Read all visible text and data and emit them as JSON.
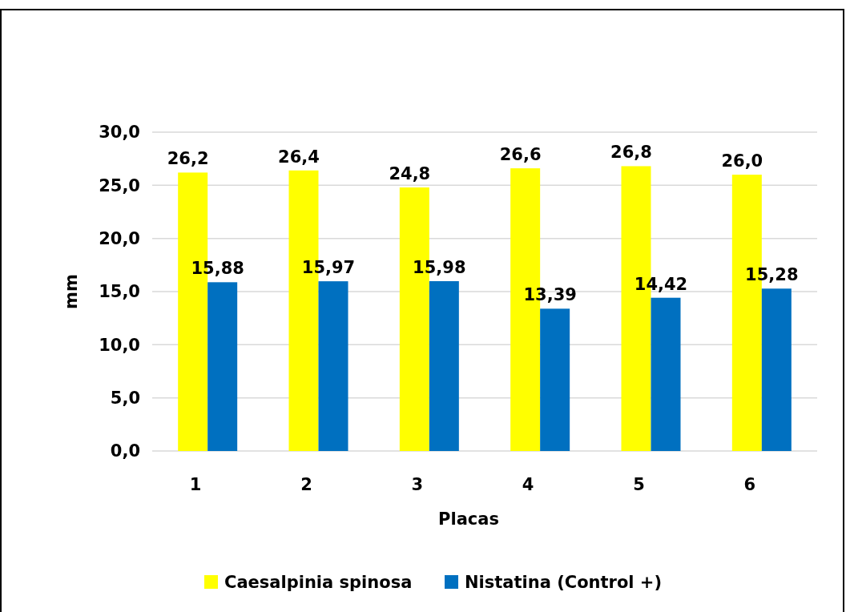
{
  "chart_data": {
    "type": "bar",
    "xlabel": "Placas",
    "ylabel": "mm",
    "categories": [
      "1",
      "2",
      "3",
      "4",
      "5",
      "6"
    ],
    "series": [
      {
        "name": "Caesalpinia spinosa",
        "color": "#ffff00",
        "values": [
          26.2,
          26.4,
          24.8,
          26.6,
          26.8,
          26.0
        ],
        "value_labels": [
          "26,2",
          "26,4",
          "24,8",
          "26,6",
          "26,8",
          "26,0"
        ]
      },
      {
        "name": "Nistatina (Control +)",
        "color": "#0070c0",
        "values": [
          15.88,
          15.97,
          15.98,
          13.39,
          14.42,
          15.28
        ],
        "value_labels": [
          "15,88",
          "15,97",
          "15,98",
          "13,39",
          "14,42",
          "15,28"
        ]
      }
    ],
    "ylim": [
      0,
      30
    ],
    "yticks": [
      {
        "value": 0,
        "label": "0,0"
      },
      {
        "value": 5,
        "label": "5,0"
      },
      {
        "value": 10,
        "label": "10,0"
      },
      {
        "value": 15,
        "label": "15,0"
      },
      {
        "value": 20,
        "label": "20,0"
      },
      {
        "value": 25,
        "label": "25,0"
      },
      {
        "value": 30,
        "label": "30,0"
      }
    ],
    "grid": "y",
    "legend": "bottom"
  }
}
